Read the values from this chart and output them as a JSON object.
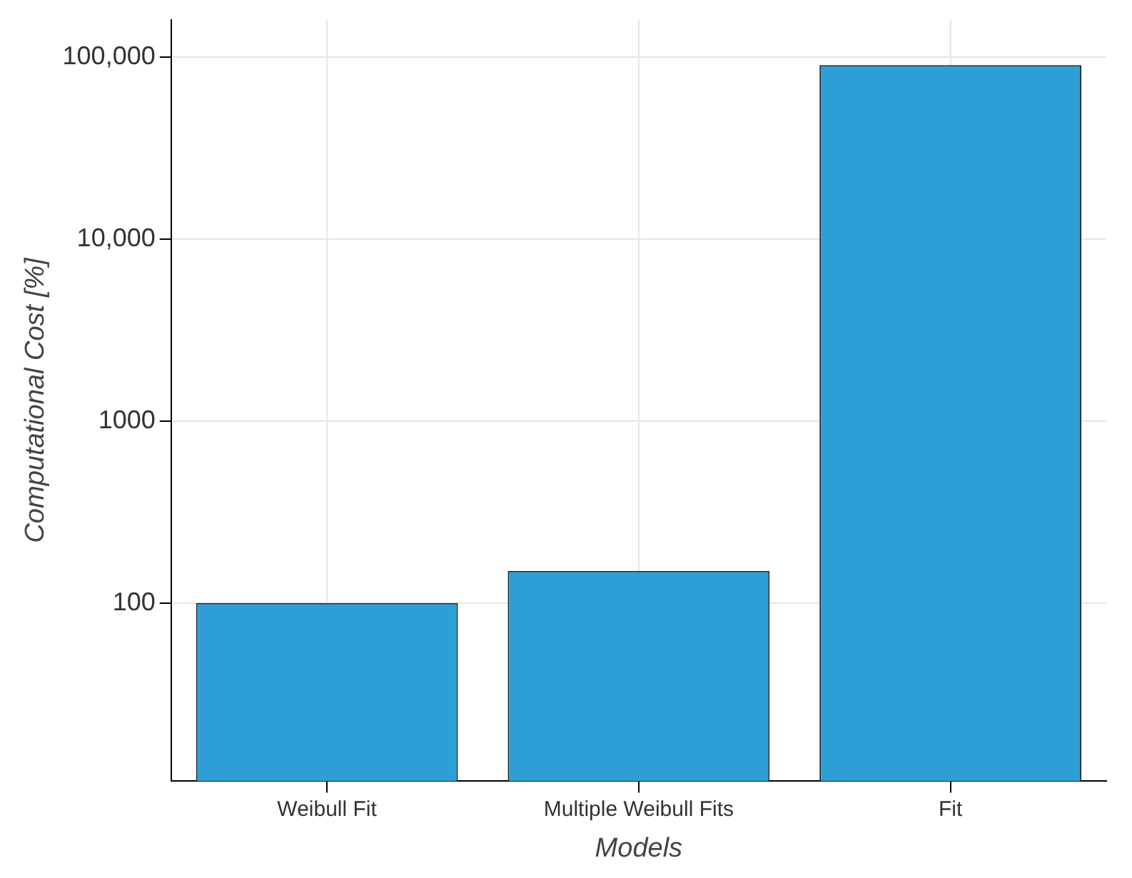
{
  "chart_data": {
    "type": "bar",
    "xlabel": "Models",
    "ylabel": "Computational Cost [%]",
    "categories": [
      "Weibull Fit",
      "Multiple Weibull Fits",
      "Fit"
    ],
    "values": [
      100,
      150,
      90000
    ],
    "color": "#2e9fd6",
    "log": true,
    "ylim": [
      10.5,
      160000
    ],
    "yticks": [
      100,
      1000,
      {
        "value": 10000,
        "label": "10,000"
      },
      {
        "value": 100000,
        "label": "100,000"
      }
    ],
    "grid": true
  }
}
